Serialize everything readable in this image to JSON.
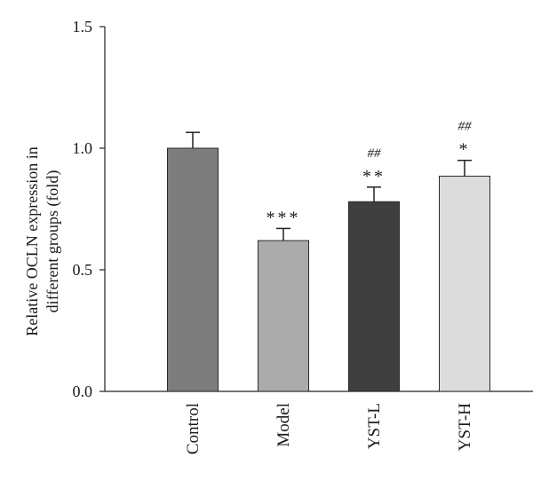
{
  "chart_data": {
    "type": "bar",
    "title": "",
    "xlabel": "",
    "ylabel": "Relative OCLN expression in different groups (fold)",
    "ylabel_lines": [
      "Relative OCLN expression in",
      "different groups (fold)"
    ],
    "ylim": [
      0,
      1.5
    ],
    "yticks": [
      "0.0",
      "0.5",
      "1.0",
      "1.5"
    ],
    "ytick_values": [
      0,
      0.5,
      1.0,
      1.5
    ],
    "categories": [
      "Control",
      "Model",
      "YST-L",
      "YST-H"
    ],
    "values": [
      1.0,
      0.62,
      0.78,
      0.885
    ],
    "errors": [
      0.065,
      0.05,
      0.06,
      0.065
    ],
    "colors": [
      "#7d7d7d",
      "#ababab",
      "#3f3f3f",
      "#dcdcdc"
    ],
    "annotations_star": [
      "",
      "***",
      "**",
      "*"
    ],
    "annotations_hash": [
      "",
      "",
      "##",
      "##"
    ],
    "grid": false,
    "legend": "none"
  }
}
